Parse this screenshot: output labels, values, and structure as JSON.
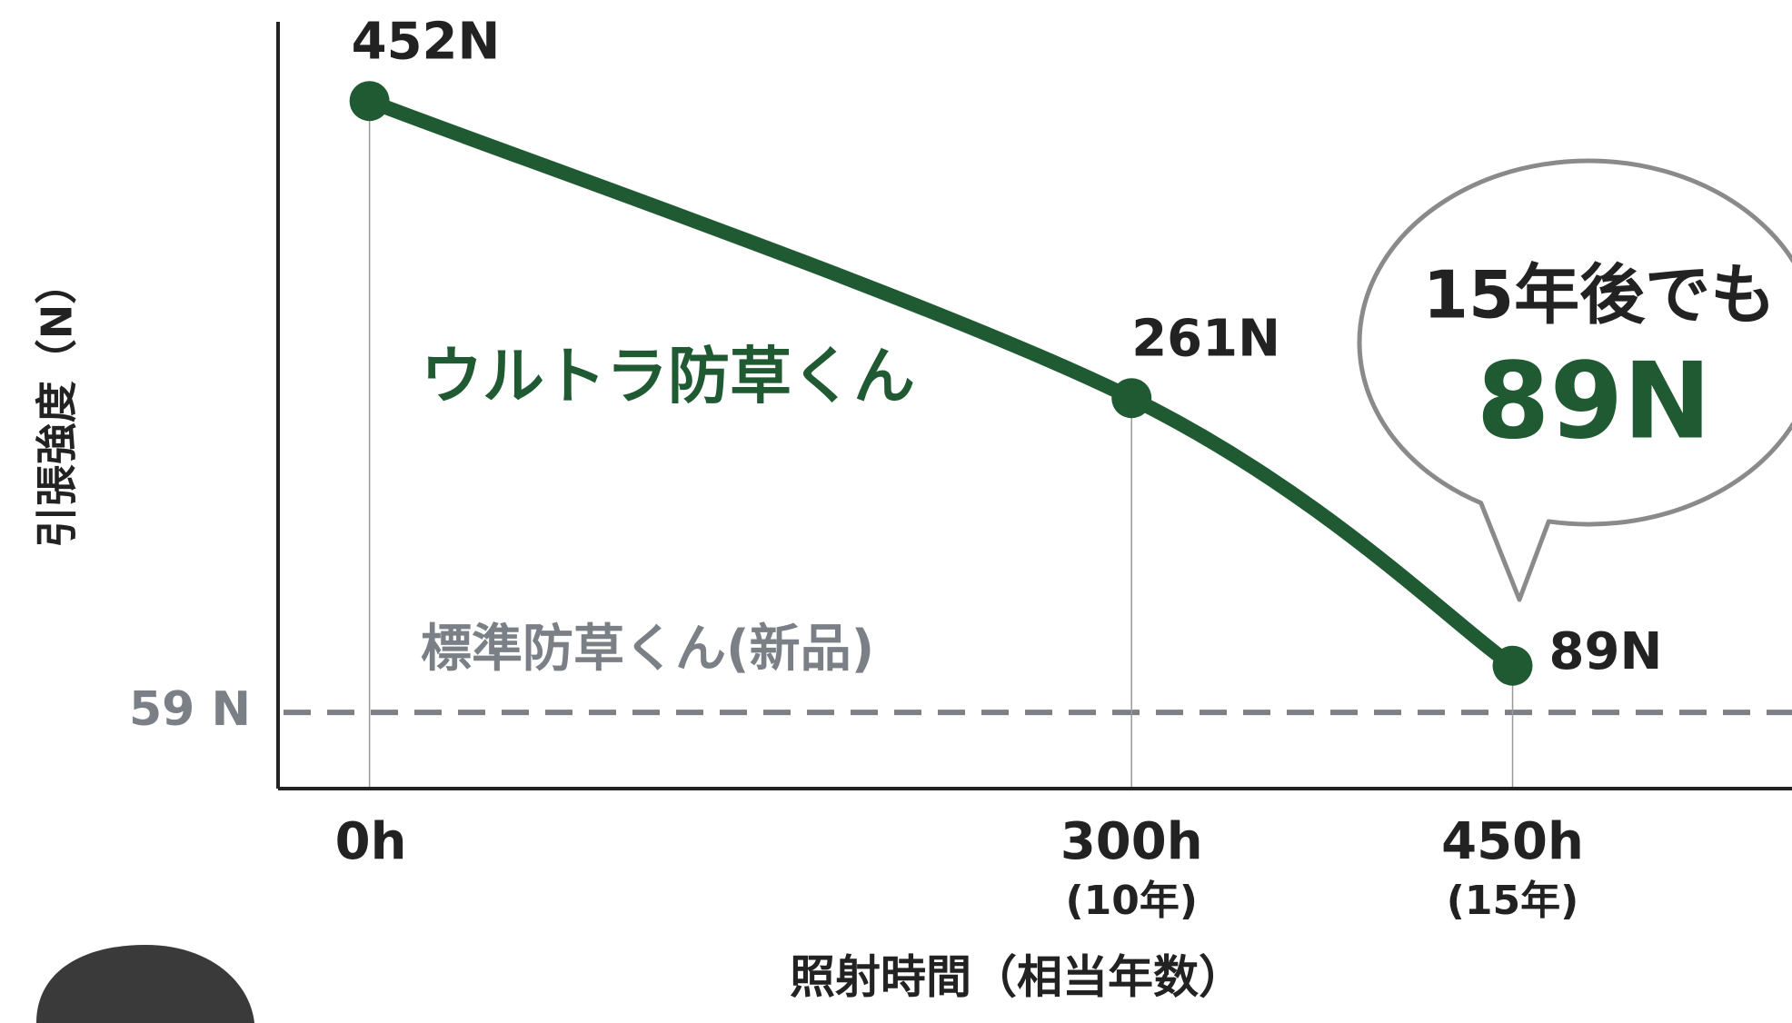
{
  "chart_data": {
    "type": "line",
    "x_label": "照射時間（相当年数）",
    "y_label": "引張強度（N）",
    "x": [
      0,
      300,
      450
    ],
    "xlim": [
      -36,
      560
    ],
    "xticks": [
      {
        "value": 0,
        "label": "0h"
      },
      {
        "value": 300,
        "label": "300h",
        "sublabel": "(10年)"
      },
      {
        "value": 450,
        "label": "450h",
        "sublabel": "(15年)"
      }
    ],
    "ylim": [
      10,
      500
    ],
    "series": [
      {
        "name": "ウルトラ防草くん",
        "color": "#1f5a32",
        "values": [
          452,
          261,
          89
        ],
        "value_labels": [
          "452N",
          "261N",
          "89N"
        ]
      }
    ],
    "reference_lines": [
      {
        "value": 59,
        "label": "59 N",
        "name": "標準防草くん(新品)",
        "color": "#7b8087"
      }
    ],
    "annotation": {
      "lines": [
        "15年後でも",
        "89N"
      ]
    }
  }
}
